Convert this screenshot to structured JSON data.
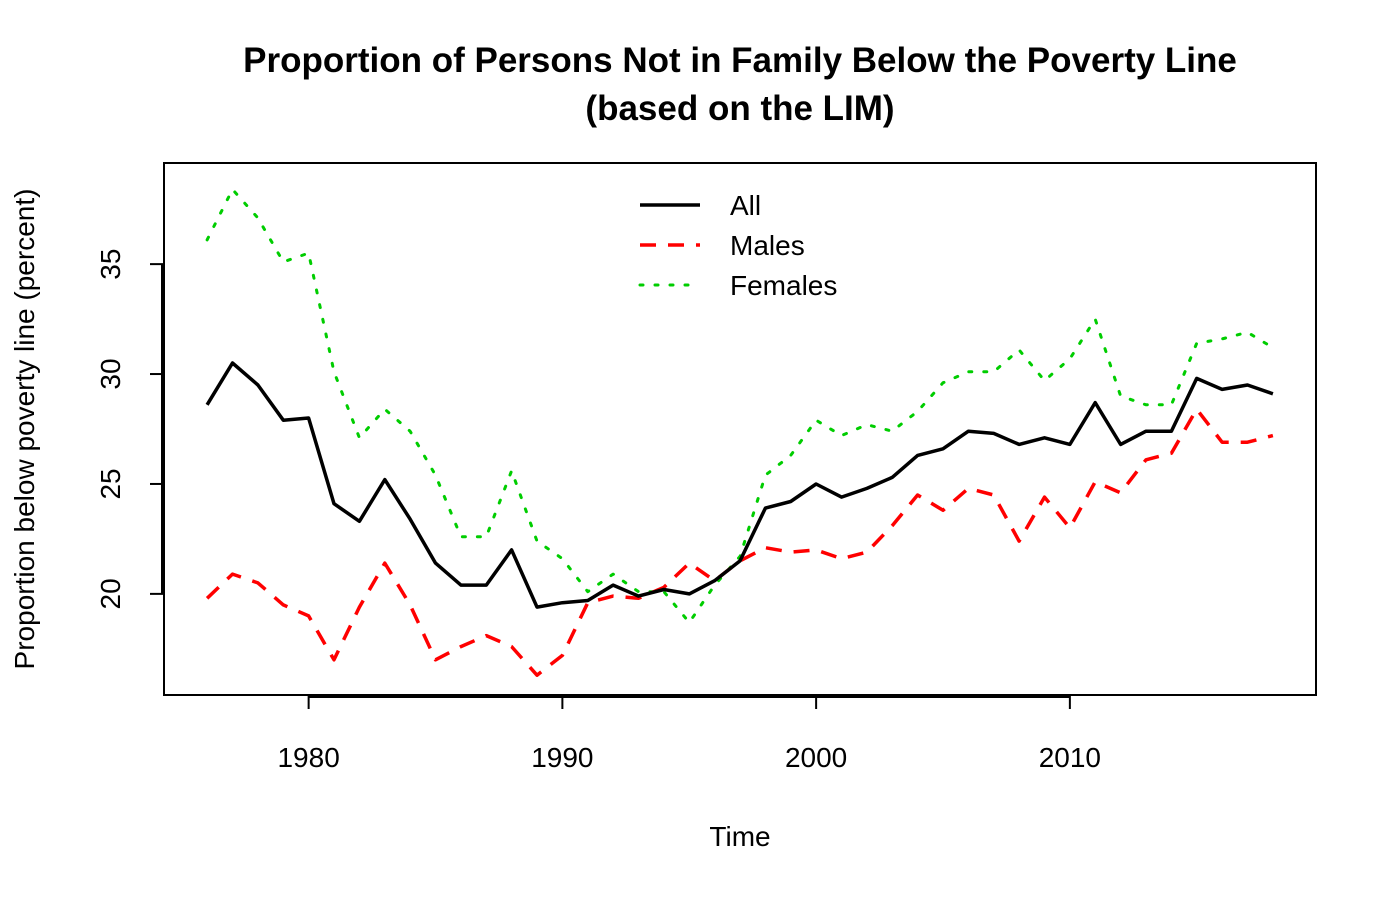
{
  "chart_data": {
    "type": "line",
    "title": "Proportion of Persons Not in Family Below the Poverty Line",
    "subtitle": "(based on the LIM)",
    "xlabel": "Time",
    "ylabel": "Proportion below poverty line (percent)",
    "xlim": [
      1974.3,
      2019.7
    ],
    "ylim": [
      15.4,
      39.6
    ],
    "xticks": [
      1980,
      1990,
      2000,
      2010
    ],
    "yticks": [
      20,
      25,
      30,
      35
    ],
    "grid": false,
    "legend_position": "top-center",
    "x": [
      1976,
      1977,
      1978,
      1979,
      1980,
      1981,
      1982,
      1983,
      1984,
      1985,
      1986,
      1987,
      1988,
      1989,
      1990,
      1991,
      1992,
      1993,
      1994,
      1995,
      1996,
      1997,
      1998,
      1999,
      2000,
      2001,
      2002,
      2003,
      2004,
      2005,
      2006,
      2007,
      2008,
      2009,
      2010,
      2011,
      2012,
      2013,
      2014,
      2015,
      2016,
      2017,
      2018
    ],
    "series": [
      {
        "name": "All",
        "color": "#000000",
        "line_style": "solid",
        "values": [
          28.6,
          30.5,
          29.5,
          27.9,
          28.0,
          24.1,
          23.3,
          25.2,
          23.4,
          21.4,
          20.4,
          20.4,
          22.0,
          19.4,
          19.6,
          19.7,
          20.4,
          19.9,
          20.2,
          20.0,
          20.6,
          21.5,
          23.9,
          24.2,
          25.0,
          24.4,
          24.8,
          25.3,
          26.3,
          26.6,
          27.4,
          27.3,
          26.8,
          27.1,
          26.8,
          28.7,
          26.8,
          27.4,
          27.4,
          29.8,
          29.3,
          29.5,
          29.1
        ]
      },
      {
        "name": "Males",
        "color": "#ff0000",
        "line_style": "dashed",
        "values": [
          19.8,
          20.9,
          20.5,
          19.5,
          19.0,
          17.0,
          19.4,
          21.4,
          19.5,
          17.0,
          17.6,
          18.1,
          17.6,
          16.3,
          17.2,
          19.6,
          19.9,
          19.8,
          20.3,
          21.4,
          20.6,
          21.5,
          22.1,
          21.9,
          22.0,
          21.6,
          21.9,
          23.1,
          24.5,
          23.8,
          24.8,
          24.5,
          22.4,
          24.4,
          23.0,
          25.1,
          24.6,
          26.1,
          26.4,
          28.4,
          26.9,
          26.9,
          27.2
        ]
      },
      {
        "name": "Females",
        "color": "#00cd00",
        "line_style": "dotted",
        "values": [
          36.1,
          38.4,
          37.1,
          35.1,
          35.5,
          30.1,
          27.1,
          28.4,
          27.4,
          25.4,
          22.6,
          22.6,
          25.6,
          22.4,
          21.6,
          20.1,
          20.9,
          20.1,
          20.1,
          18.7,
          20.4,
          21.7,
          25.4,
          26.3,
          27.9,
          27.2,
          27.7,
          27.4,
          28.3,
          29.6,
          30.1,
          30.1,
          31.1,
          29.7,
          30.7,
          32.5,
          29.0,
          28.6,
          28.6,
          31.4,
          31.6,
          31.9,
          31.2
        ]
      }
    ]
  }
}
